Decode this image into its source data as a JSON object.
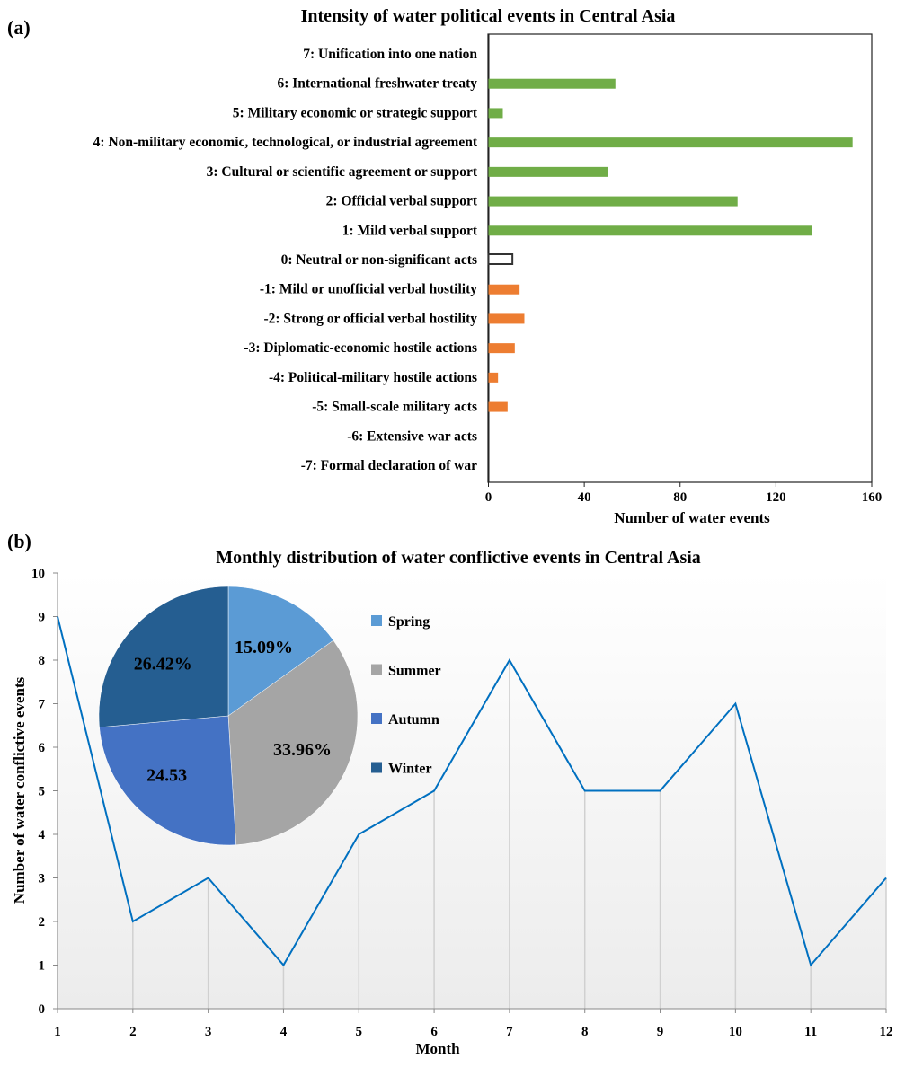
{
  "chart_data": [
    {
      "type": "bar",
      "panel_label": "(a)",
      "title": "Intensity of water political events in Central Asia",
      "xlabel": "Number of water events",
      "ylabel": "",
      "xlim": [
        0,
        160
      ],
      "xticks": [
        "0",
        "40",
        "80",
        "120",
        "160"
      ],
      "orientation": "horizontal",
      "categories": [
        "7: Unification into one nation",
        "6: International freshwater treaty",
        "5: Military economic or strategic support",
        "4: Non-military economic, technological,  or industrial agreement",
        "3: Cultural or scientific agreement or support",
        "2: Official verbal support",
        "1: Mild verbal support",
        "0: Neutral or non-significant acts",
        "-1: Mild or unofficial verbal hostility",
        "-2: Strong or official verbal hostility",
        "-3: Diplomatic-economic hostile actions",
        "-4: Political-military hostile actions",
        "-5: Small-scale military acts",
        "-6: Extensive war acts",
        "-7: Formal declaration of war"
      ],
      "values": [
        0,
        53,
        6,
        152,
        50,
        104,
        135,
        10,
        13,
        15,
        11,
        4,
        8,
        0,
        0
      ],
      "colors": {
        "cooperative": "#70ad47",
        "neutral": "#ffffff",
        "conflictive": "#ed7d31"
      }
    },
    {
      "type": "line",
      "panel_label": "(b)",
      "title": "Monthly distribution of water conflictive events in Central Asia",
      "xlabel": "Month",
      "ylabel": "Number  of  water conflictive events",
      "x": [
        1,
        2,
        3,
        4,
        5,
        6,
        7,
        8,
        9,
        10,
        11,
        12
      ],
      "values": [
        9,
        2,
        3,
        1,
        4,
        5,
        8,
        5,
        5,
        7,
        1,
        3
      ],
      "ylim": [
        0,
        10
      ],
      "yticks": [
        "0",
        "1",
        "2",
        "3",
        "4",
        "5",
        "6",
        "7",
        "8",
        "9",
        "10"
      ],
      "xticks": [
        "1",
        "2",
        "3",
        "4",
        "5",
        "6",
        "7",
        "8",
        "9",
        "10",
        "11",
        "12"
      ],
      "color": "#0070c0"
    },
    {
      "type": "pie",
      "labels": [
        "Spring",
        "Summer",
        "Autumn",
        "Winter"
      ],
      "values": [
        15.09,
        33.96,
        24.53,
        26.42
      ],
      "data_labels": [
        "15.09%",
        "33.96%",
        "24.53",
        "26.42%"
      ],
      "colors": [
        "#5b9bd5",
        "#a5a5a5",
        "#4472c4",
        "#255e91"
      ],
      "legend": "right"
    }
  ]
}
